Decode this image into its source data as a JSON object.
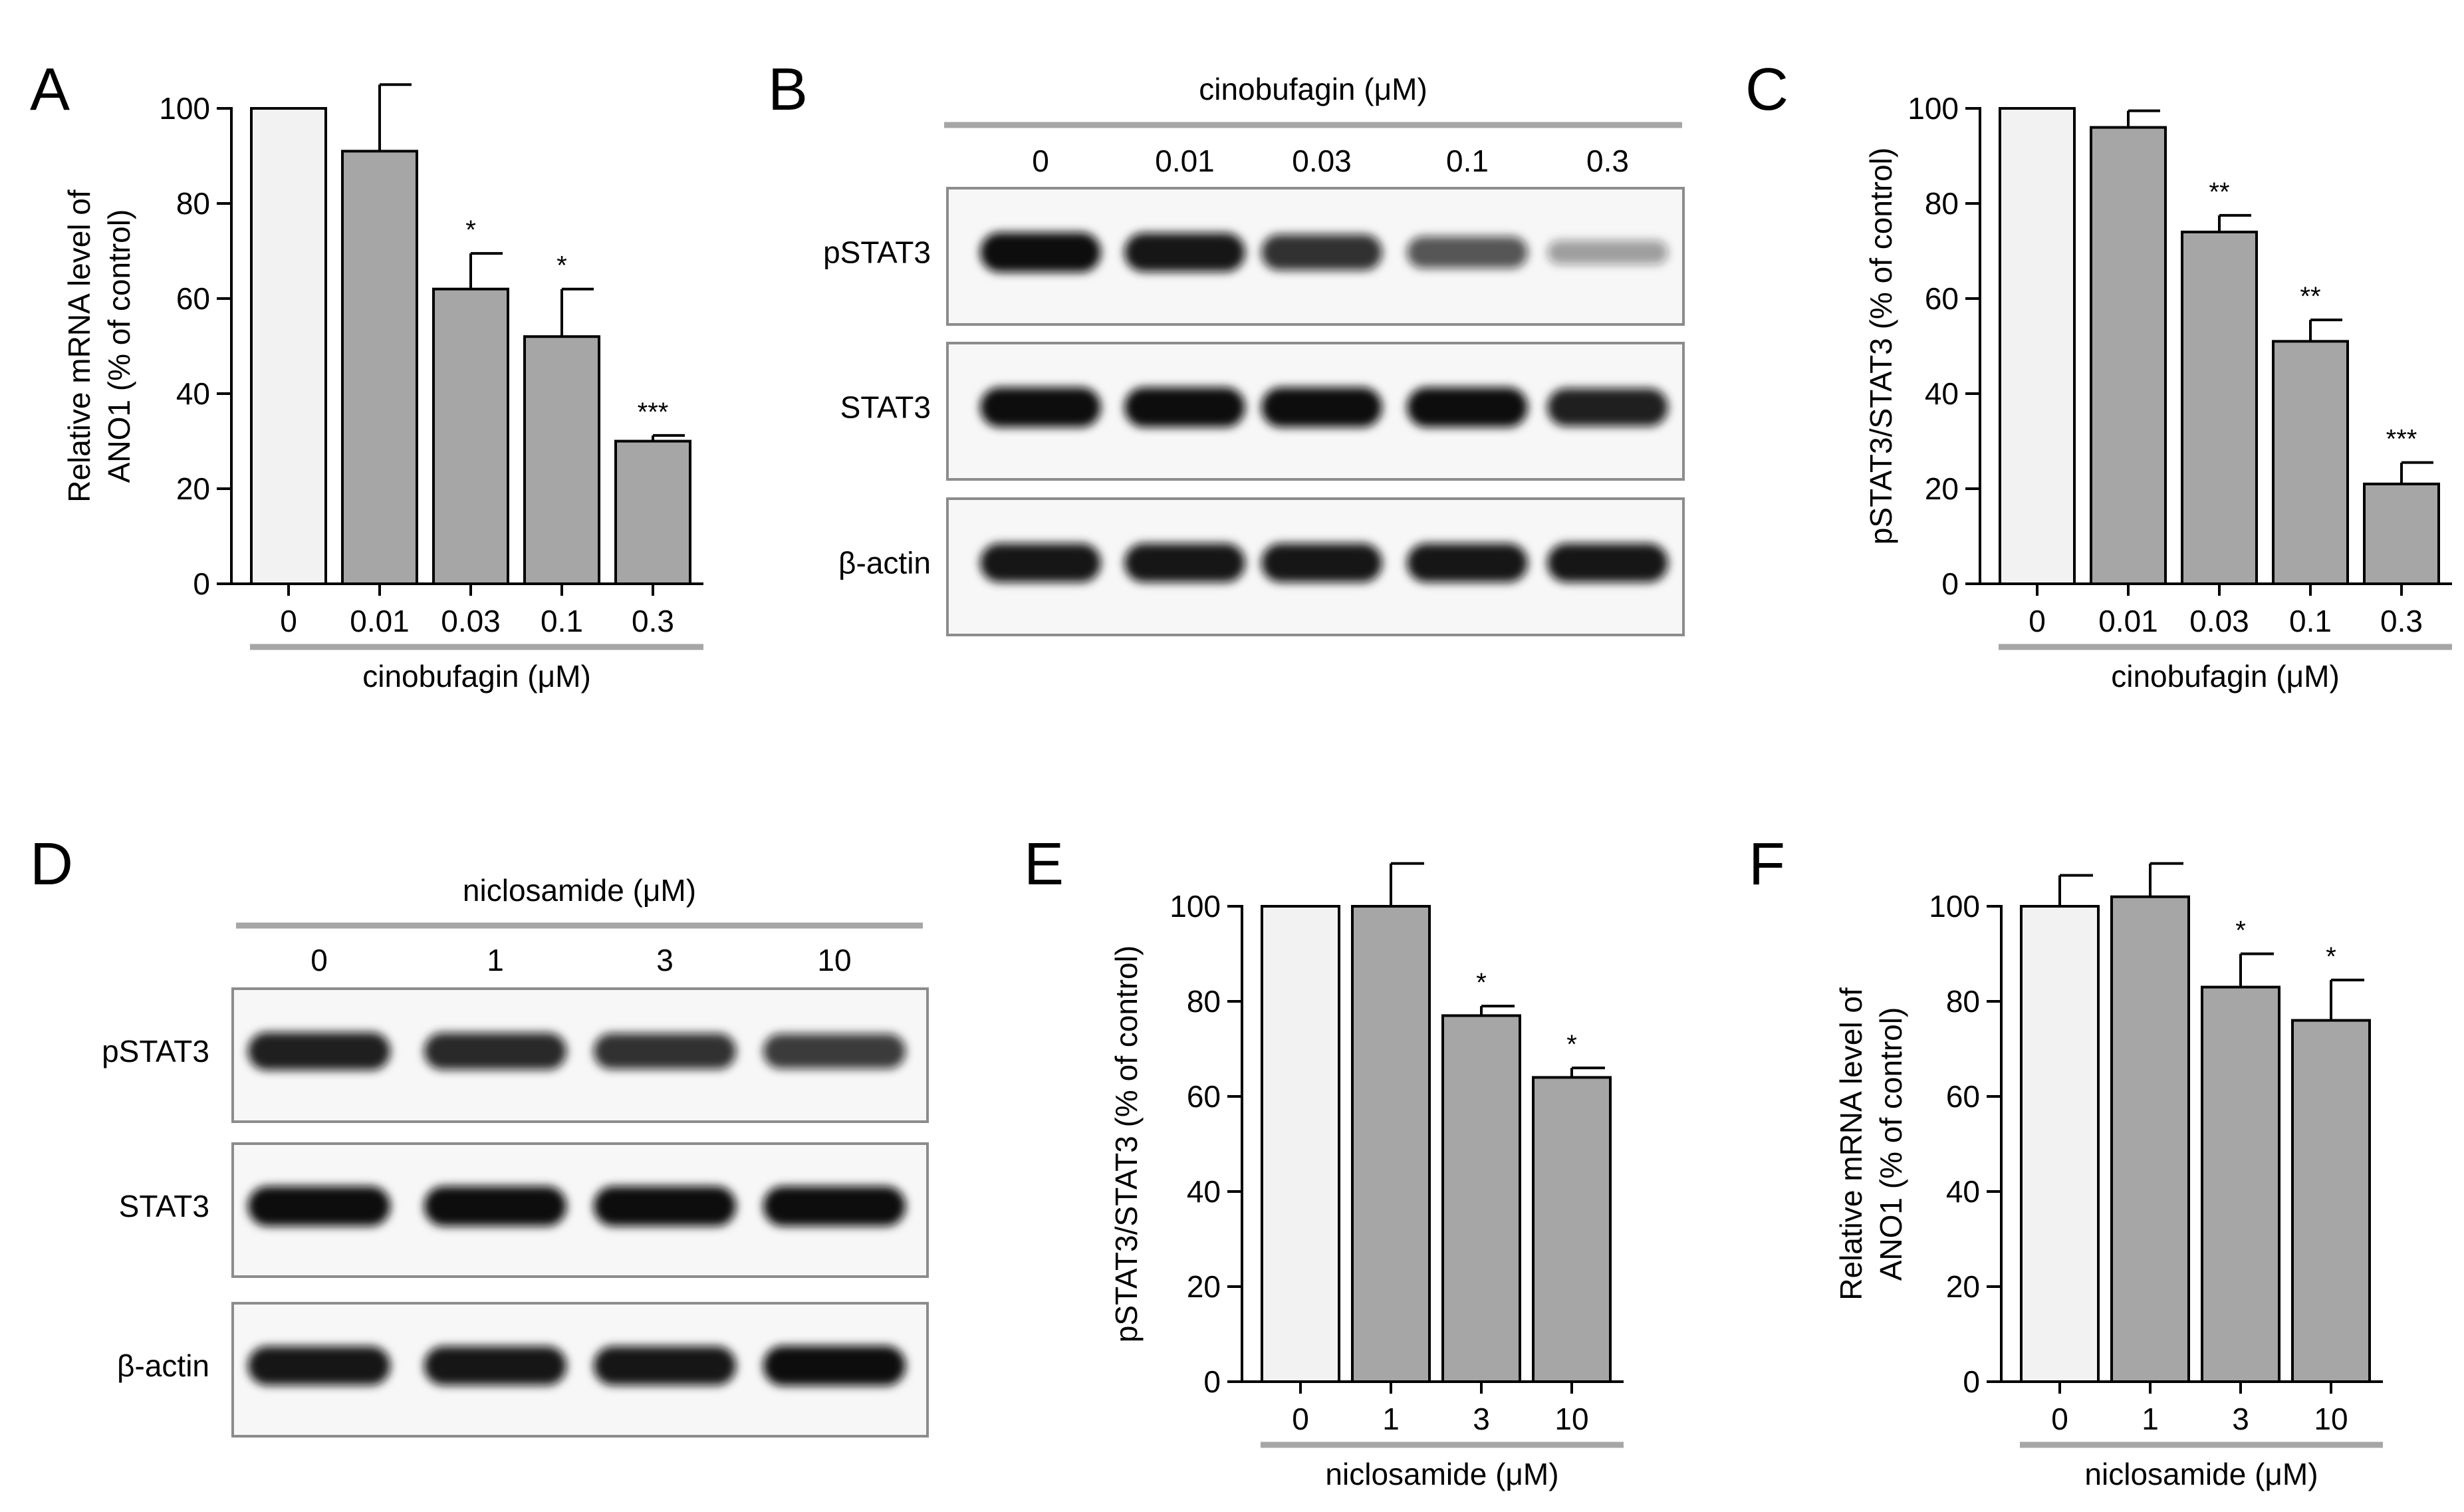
{
  "panels": {
    "A": "A",
    "B": "B",
    "C": "C",
    "D": "D",
    "E": "E",
    "F": "F"
  },
  "colors": {
    "control_bar": "#f2f2f2",
    "treated_bar": "#a6a6a6",
    "separator": "#a6a6a6",
    "band": "#111111",
    "blot_bg": "#f7f7f7"
  },
  "blot_B": {
    "treatment": "cinobufagin (μM)",
    "lanes": [
      "0",
      "0.01",
      "0.03",
      "0.1",
      "0.3"
    ],
    "rows": [
      {
        "label": "pSTAT3",
        "intensity": [
          1.0,
          0.95,
          0.8,
          0.6,
          0.2
        ]
      },
      {
        "label": "STAT3",
        "intensity": [
          1.0,
          1.0,
          1.0,
          1.0,
          0.9
        ]
      },
      {
        "label": "β-actin",
        "intensity": [
          0.95,
          0.95,
          0.95,
          0.95,
          0.95
        ]
      }
    ]
  },
  "blot_D": {
    "treatment": "niclosamide (μM)",
    "lanes": [
      "0",
      "1",
      "3",
      "10"
    ],
    "rows": [
      {
        "label": "pSTAT3",
        "intensity": [
          0.9,
          0.85,
          0.8,
          0.75
        ]
      },
      {
        "label": "STAT3",
        "intensity": [
          1.0,
          1.0,
          1.0,
          1.0
        ]
      },
      {
        "label": "β-actin",
        "intensity": [
          0.95,
          0.95,
          0.95,
          1.0
        ]
      }
    ]
  },
  "chart_data": [
    {
      "panel": "A",
      "type": "bar",
      "categories": [
        "0",
        "0.01",
        "0.03",
        "0.1",
        "0.3"
      ],
      "values": [
        100,
        91,
        62,
        52,
        30
      ],
      "errors": [
        0,
        14,
        7.5,
        10,
        1.2
      ],
      "significance": [
        "",
        "",
        "*",
        "*",
        "***"
      ],
      "ylabel_line1": "Relative mRNA level of",
      "ylabel_line2": "ANO1 (% of control)",
      "xlabel": "cinobufagin (μM)",
      "ylim": [
        0,
        100
      ],
      "yticks": [
        0,
        20,
        40,
        60,
        80,
        100
      ]
    },
    {
      "panel": "C",
      "type": "bar",
      "categories": [
        "0",
        "0.01",
        "0.03",
        "0.1",
        "0.3"
      ],
      "values": [
        100,
        96,
        74,
        51,
        21
      ],
      "errors": [
        0,
        3.5,
        3.5,
        4.5,
        4.5
      ],
      "significance": [
        "",
        "",
        "**",
        "**",
        "***"
      ],
      "ylabel_line1": "pSTAT3/STAT3  (% of control)",
      "ylabel_line2": "",
      "xlabel": "cinobufagin (μM)",
      "ylim": [
        0,
        100
      ],
      "yticks": [
        0,
        20,
        40,
        60,
        80,
        100
      ]
    },
    {
      "panel": "E",
      "type": "bar",
      "categories": [
        "0",
        "1",
        "3",
        "10"
      ],
      "values": [
        100,
        100,
        77,
        64
      ],
      "errors": [
        0,
        9,
        2,
        2
      ],
      "significance": [
        "",
        "",
        "*",
        "*"
      ],
      "ylabel_line1": "pSTAT3/STAT3  (% of control)",
      "ylabel_line2": "",
      "xlabel": "niclosamide (μM)",
      "ylim": [
        0,
        100
      ],
      "yticks": [
        0,
        20,
        40,
        60,
        80,
        100
      ]
    },
    {
      "panel": "F",
      "type": "bar",
      "categories": [
        "0",
        "1",
        "3",
        "10"
      ],
      "values": [
        100,
        102,
        83,
        76
      ],
      "errors": [
        6.5,
        7,
        7,
        8.5
      ],
      "significance": [
        "",
        "",
        "*",
        "*"
      ],
      "ylabel_line1": "Relative mRNA level of",
      "ylabel_line2": "ANO1 (% of control)",
      "xlabel": "niclosamide (μM)",
      "ylim": [
        0,
        100
      ],
      "yticks": [
        0,
        20,
        40,
        60,
        80,
        100
      ]
    }
  ]
}
